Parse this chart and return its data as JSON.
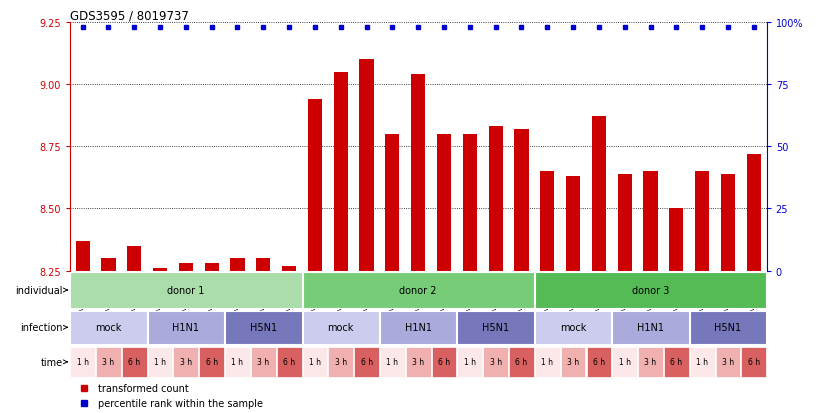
{
  "title": "GDS3595 / 8019737",
  "samples": [
    "GSM466570",
    "GSM466573",
    "GSM466576",
    "GSM466571",
    "GSM466574",
    "GSM466577",
    "GSM466572",
    "GSM466575",
    "GSM466578",
    "GSM466579",
    "GSM466582",
    "GSM466585",
    "GSM466580",
    "GSM466583",
    "GSM466586",
    "GSM466581",
    "GSM466584",
    "GSM466587",
    "GSM466588",
    "GSM466591",
    "GSM466594",
    "GSM466589",
    "GSM466592",
    "GSM466595",
    "GSM466590",
    "GSM466593",
    "GSM466596"
  ],
  "bar_values": [
    8.37,
    8.3,
    8.35,
    8.26,
    8.28,
    8.28,
    8.3,
    8.3,
    8.27,
    8.94,
    9.05,
    9.1,
    8.8,
    9.04,
    8.8,
    8.8,
    8.83,
    8.82,
    8.65,
    8.63,
    8.87,
    8.64,
    8.65,
    8.5,
    8.65,
    8.64,
    8.72
  ],
  "ymin": 8.25,
  "ymax": 9.25,
  "yticks": [
    8.25,
    8.5,
    8.75,
    9.0,
    9.25
  ],
  "right_yticks": [
    0,
    25,
    50,
    75,
    100
  ],
  "right_ytick_labels": [
    "0",
    "25",
    "50",
    "75",
    "100%"
  ],
  "bar_color": "#cc0000",
  "dot_color": "#0000cc",
  "bar_width": 0.55,
  "donors": [
    {
      "label": "donor 1",
      "start": 0,
      "end": 9,
      "color": "#aaddaa"
    },
    {
      "label": "donor 2",
      "start": 9,
      "end": 18,
      "color": "#77cc77"
    },
    {
      "label": "donor 3",
      "start": 18,
      "end": 27,
      "color": "#55bb55"
    }
  ],
  "infections": [
    {
      "label": "mock",
      "start": 0,
      "end": 3,
      "color": "#ccccee"
    },
    {
      "label": "H1N1",
      "start": 3,
      "end": 6,
      "color": "#aaaadd"
    },
    {
      "label": "H5N1",
      "start": 6,
      "end": 9,
      "color": "#7777bb"
    },
    {
      "label": "mock",
      "start": 9,
      "end": 12,
      "color": "#ccccee"
    },
    {
      "label": "H1N1",
      "start": 12,
      "end": 15,
      "color": "#aaaadd"
    },
    {
      "label": "H5N1",
      "start": 15,
      "end": 18,
      "color": "#7777bb"
    },
    {
      "label": "mock",
      "start": 18,
      "end": 21,
      "color": "#ccccee"
    },
    {
      "label": "H1N1",
      "start": 21,
      "end": 24,
      "color": "#aaaadd"
    },
    {
      "label": "H5N1",
      "start": 24,
      "end": 27,
      "color": "#7777bb"
    }
  ],
  "times": [
    {
      "label": "1 h",
      "color": "#fce8e8"
    },
    {
      "label": "3 h",
      "color": "#f0b0b0"
    },
    {
      "label": "6 h",
      "color": "#d96060"
    },
    {
      "label": "1 h",
      "color": "#fce8e8"
    },
    {
      "label": "3 h",
      "color": "#f0b0b0"
    },
    {
      "label": "6 h",
      "color": "#d96060"
    },
    {
      "label": "1 h",
      "color": "#fce8e8"
    },
    {
      "label": "3 h",
      "color": "#f0b0b0"
    },
    {
      "label": "6 h",
      "color": "#d96060"
    },
    {
      "label": "1 h",
      "color": "#fce8e8"
    },
    {
      "label": "3 h",
      "color": "#f0b0b0"
    },
    {
      "label": "6 h",
      "color": "#d96060"
    },
    {
      "label": "1 h",
      "color": "#fce8e8"
    },
    {
      "label": "3 h",
      "color": "#f0b0b0"
    },
    {
      "label": "6 h",
      "color": "#d96060"
    },
    {
      "label": "1 h",
      "color": "#fce8e8"
    },
    {
      "label": "3 h",
      "color": "#f0b0b0"
    },
    {
      "label": "6 h",
      "color": "#d96060"
    },
    {
      "label": "1 h",
      "color": "#fce8e8"
    },
    {
      "label": "3 h",
      "color": "#f0b0b0"
    },
    {
      "label": "6 h",
      "color": "#d96060"
    },
    {
      "label": "1 h",
      "color": "#fce8e8"
    },
    {
      "label": "3 h",
      "color": "#f0b0b0"
    },
    {
      "label": "6 h",
      "color": "#d96060"
    },
    {
      "label": "1 h",
      "color": "#fce8e8"
    },
    {
      "label": "3 h",
      "color": "#f0b0b0"
    },
    {
      "label": "6 h",
      "color": "#d96060"
    }
  ],
  "legend_bar_label": "transformed count",
  "legend_dot_label": "percentile rank within the sample",
  "label_individual": "individual",
  "label_infection": "infection",
  "label_time": "time",
  "ylabel_left_color": "#cc0000",
  "ylabel_right_color": "#0000cc",
  "bg_color": "#ffffff"
}
